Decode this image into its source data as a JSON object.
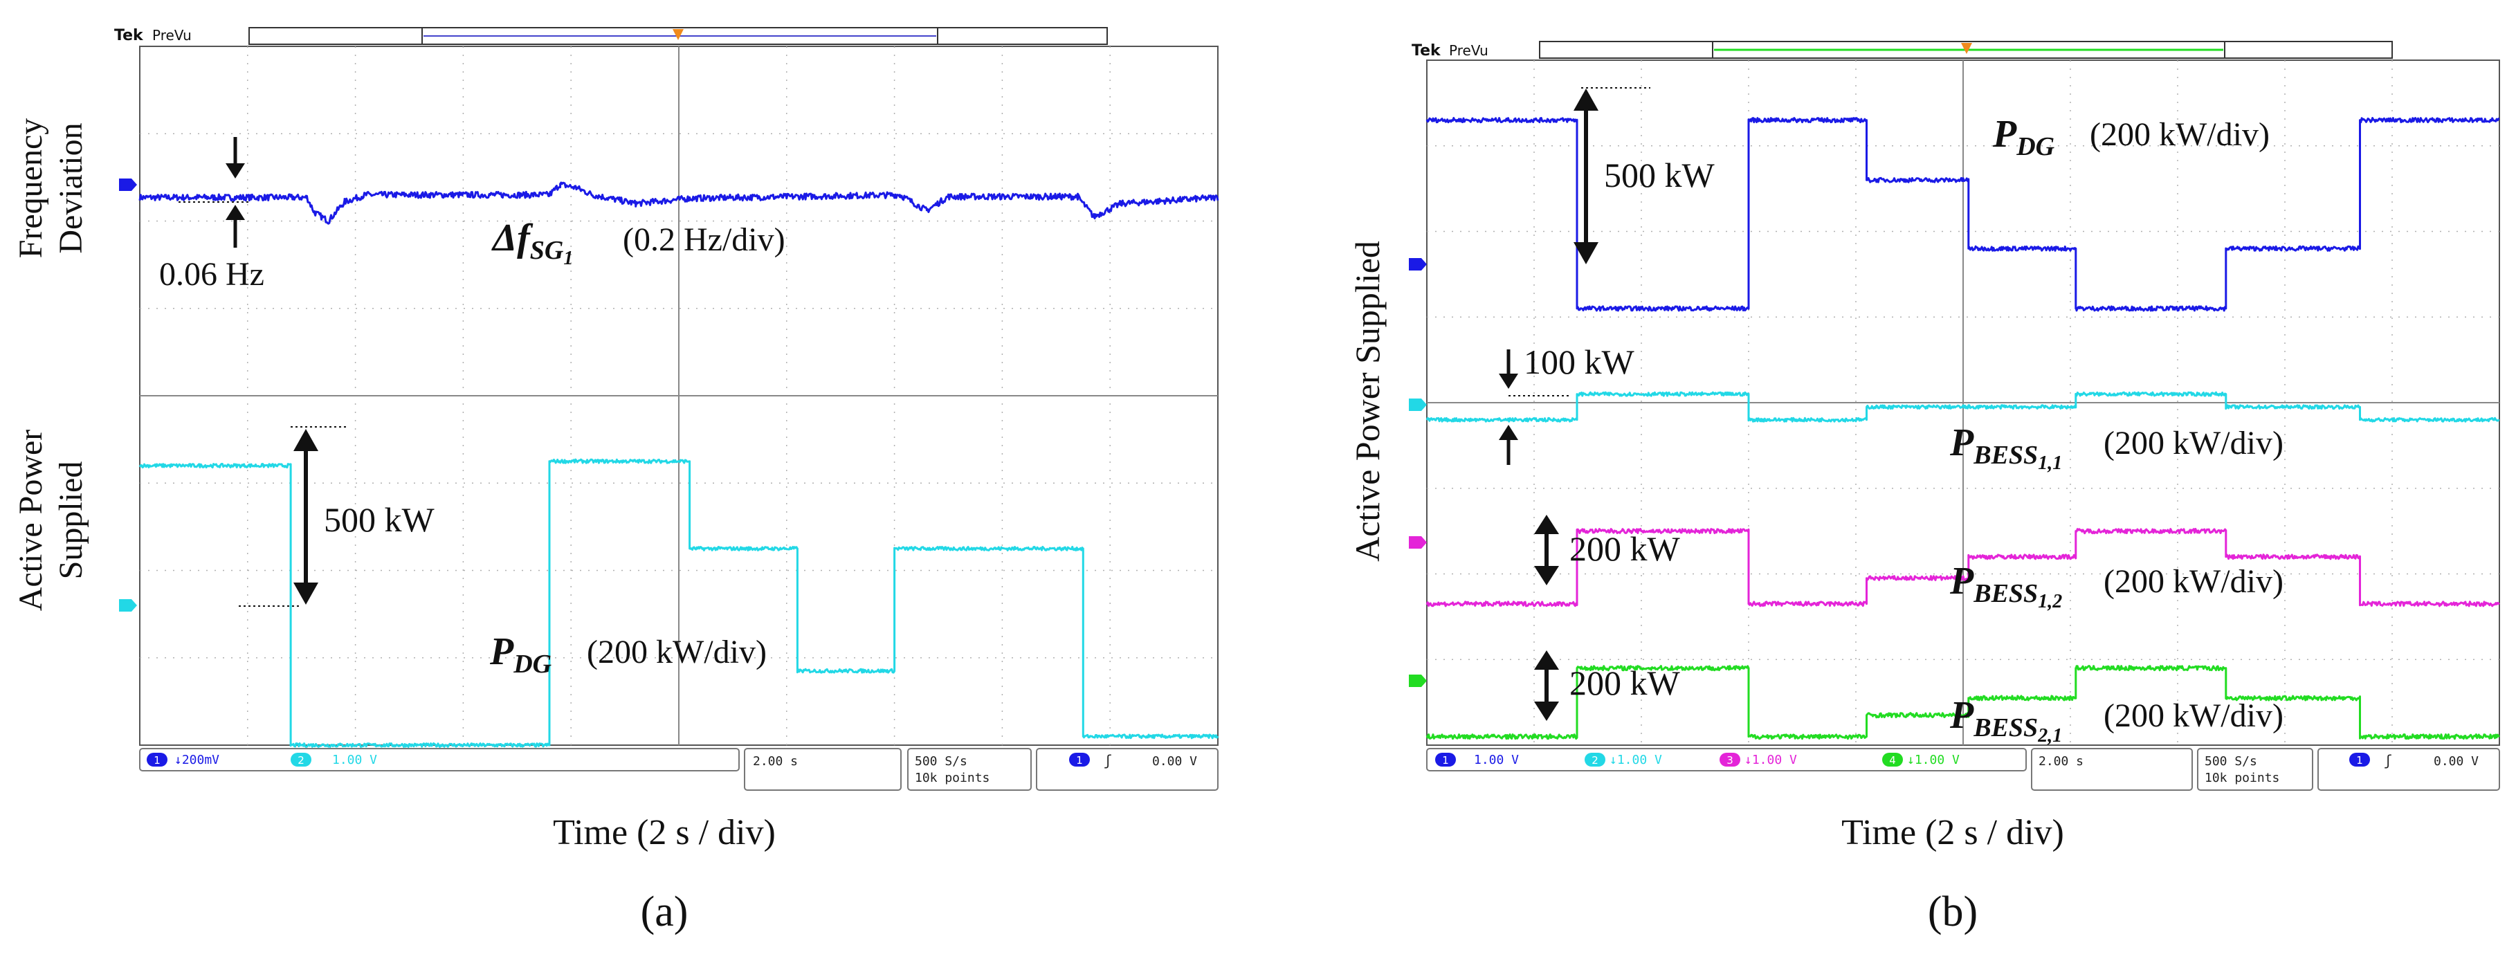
{
  "chart_data": [
    {
      "type": "line",
      "panel": "a",
      "caption": "(a)",
      "scope": {
        "brand": "Tek",
        "mode": "PreVu"
      },
      "xlabel": "Time (2 s / div)",
      "x": {
        "unit": "div",
        "range": [
          0,
          10
        ],
        "divisions": 10
      },
      "y": {
        "unit": "div",
        "range": [
          0,
          8
        ],
        "divisions": 8,
        "split_at": 4
      },
      "ylabels": [
        {
          "line1": "Frequency",
          "line2": "Deviation",
          "section": "upper"
        },
        {
          "line1": "Active Power",
          "line2": "Supplied",
          "section": "lower"
        }
      ],
      "series": [
        {
          "name": "Δf_SG1",
          "color": "#1a1ae6",
          "noise": 0.035,
          "label": {
            "base": "Δf",
            "sub": "SG",
            "subsub": "1",
            "scale": "(0.2 Hz/div)"
          },
          "points": [
            [
              0,
              6.27
            ],
            [
              1.4,
              6.27
            ],
            [
              1.55,
              6.27
            ],
            [
              1.62,
              6.1
            ],
            [
              1.75,
              6.0
            ],
            [
              1.9,
              6.22
            ],
            [
              2.1,
              6.3
            ],
            [
              3.8,
              6.3
            ],
            [
              3.9,
              6.42
            ],
            [
              4.05,
              6.38
            ],
            [
              4.2,
              6.3
            ],
            [
              4.6,
              6.2
            ],
            [
              5.1,
              6.26
            ],
            [
              7.05,
              6.3
            ],
            [
              7.3,
              6.12
            ],
            [
              7.5,
              6.28
            ],
            [
              8.7,
              6.28
            ],
            [
              8.85,
              6.05
            ],
            [
              9.1,
              6.2
            ],
            [
              10,
              6.27
            ]
          ]
        },
        {
          "name": "P_DG",
          "color": "#22d8e6",
          "noise": 0.02,
          "label": {
            "base": "P",
            "sub": "DG",
            "scale": "(200 kW/div)"
          },
          "points": [
            [
              0,
              3.2
            ],
            [
              1.4,
              3.2
            ],
            [
              1.4,
              0.0
            ],
            [
              3.8,
              0.0
            ],
            [
              3.8,
              3.25
            ],
            [
              5.1,
              3.25
            ],
            [
              5.1,
              2.25
            ],
            [
              6.1,
              2.25
            ],
            [
              6.1,
              0.85
            ],
            [
              7.0,
              0.85
            ],
            [
              7.0,
              2.25
            ],
            [
              8.75,
              2.25
            ],
            [
              8.75,
              0.1
            ],
            [
              10,
              0.1
            ]
          ]
        }
      ],
      "annotations": [
        {
          "text": "0.06 Hz",
          "kind": "small-step"
        },
        {
          "text": "500 kW",
          "kind": "double-arrow"
        }
      ],
      "status": {
        "ch1": {
          "num": "1",
          "value": "↓200mV"
        },
        "ch2": {
          "num": "2",
          "value": "1.00 V"
        },
        "timebase": "2.00 s",
        "rate": "500 S/s",
        "points": "10k points",
        "trig_ch": "1",
        "trig_slope": "ʃ",
        "trig_level": "0.00 V"
      }
    },
    {
      "type": "line",
      "panel": "b",
      "caption": "(b)",
      "scope": {
        "brand": "Tek",
        "mode": "PreVu"
      },
      "xlabel": "Time (2 s / div)",
      "x": {
        "unit": "div",
        "range": [
          0,
          10
        ],
        "divisions": 10
      },
      "y": {
        "unit": "div",
        "range": [
          0,
          8
        ],
        "divisions": 8,
        "split_at": 4
      },
      "ylabels": [
        {
          "line1": "Active Power Supplied",
          "section": "full"
        }
      ],
      "series": [
        {
          "name": "P_DG",
          "color": "#1a1ae6",
          "noise": 0.025,
          "label": {
            "base": "P",
            "sub": "DG",
            "scale": "(200 kW/div)"
          },
          "points": [
            [
              0,
              7.3
            ],
            [
              1.4,
              7.3
            ],
            [
              1.4,
              5.1
            ],
            [
              3.0,
              5.1
            ],
            [
              3.0,
              7.3
            ],
            [
              4.1,
              7.3
            ],
            [
              4.1,
              6.6
            ],
            [
              5.05,
              6.6
            ],
            [
              5.05,
              5.8
            ],
            [
              6.05,
              5.8
            ],
            [
              6.05,
              5.1
            ],
            [
              7.45,
              5.1
            ],
            [
              7.45,
              5.8
            ],
            [
              8.7,
              5.8
            ],
            [
              8.7,
              7.3
            ],
            [
              10,
              7.3
            ]
          ]
        },
        {
          "name": "P_BESS1,1",
          "color": "#22d8e6",
          "noise": 0.02,
          "label": {
            "base": "P",
            "sub": "BESS",
            "subsub": "1,1",
            "scale": "(200 kW/div)"
          },
          "points": [
            [
              0,
              3.8
            ],
            [
              1.4,
              3.8
            ],
            [
              1.4,
              4.1
            ],
            [
              3.0,
              4.1
            ],
            [
              3.0,
              3.8
            ],
            [
              4.1,
              3.8
            ],
            [
              4.1,
              3.95
            ],
            [
              5.05,
              3.95
            ],
            [
              5.05,
              3.95
            ],
            [
              6.05,
              3.95
            ],
            [
              6.05,
              4.1
            ],
            [
              7.45,
              4.1
            ],
            [
              7.45,
              3.95
            ],
            [
              8.7,
              3.95
            ],
            [
              8.7,
              3.8
            ],
            [
              10,
              3.8
            ]
          ]
        },
        {
          "name": "P_BESS1,2",
          "color": "#e424d8",
          "noise": 0.025,
          "label": {
            "base": "P",
            "sub": "BESS",
            "subsub": "1,2",
            "scale": "(200 kW/div)"
          },
          "points": [
            [
              0,
              1.65
            ],
            [
              1.4,
              1.65
            ],
            [
              1.4,
              2.5
            ],
            [
              3.0,
              2.5
            ],
            [
              3.0,
              1.65
            ],
            [
              4.1,
              1.65
            ],
            [
              4.1,
              1.95
            ],
            [
              5.05,
              1.95
            ],
            [
              5.05,
              2.2
            ],
            [
              6.05,
              2.2
            ],
            [
              6.05,
              2.5
            ],
            [
              7.45,
              2.5
            ],
            [
              7.45,
              2.2
            ],
            [
              8.7,
              2.2
            ],
            [
              8.7,
              1.65
            ],
            [
              10,
              1.65
            ]
          ]
        },
        {
          "name": "P_BESS2,1",
          "color": "#22dc22",
          "noise": 0.025,
          "label": {
            "base": "P",
            "sub": "BESS",
            "subsub": "2,1",
            "scale": "(200 kW/div)"
          },
          "points": [
            [
              0,
              0.1
            ],
            [
              1.4,
              0.1
            ],
            [
              1.4,
              0.9
            ],
            [
              3.0,
              0.9
            ],
            [
              3.0,
              0.1
            ],
            [
              4.1,
              0.1
            ],
            [
              4.1,
              0.35
            ],
            [
              5.05,
              0.35
            ],
            [
              5.05,
              0.55
            ],
            [
              6.05,
              0.55
            ],
            [
              6.05,
              0.9
            ],
            [
              7.45,
              0.9
            ],
            [
              7.45,
              0.55
            ],
            [
              8.7,
              0.55
            ],
            [
              8.7,
              0.1
            ],
            [
              10,
              0.1
            ]
          ]
        }
      ],
      "annotations": [
        {
          "text": "500 kW",
          "kind": "double-arrow"
        },
        {
          "text": "100 kW",
          "kind": "small-step"
        },
        {
          "text": "200 kW",
          "kind": "double-arrow"
        },
        {
          "text": "200 kW",
          "kind": "double-arrow"
        }
      ],
      "status": {
        "ch1": {
          "num": "1",
          "value": "1.00 V"
        },
        "ch2": {
          "num": "2",
          "value": "↓1.00 V"
        },
        "ch3": {
          "num": "3",
          "value": "↓1.00 V"
        },
        "ch4": {
          "num": "4",
          "value": "↓1.00 V"
        },
        "timebase": "2.00 s",
        "rate": "500 S/s",
        "points": "10k points",
        "trig_ch": "1",
        "trig_slope": "ʃ",
        "trig_level": "0.00 V"
      }
    }
  ]
}
